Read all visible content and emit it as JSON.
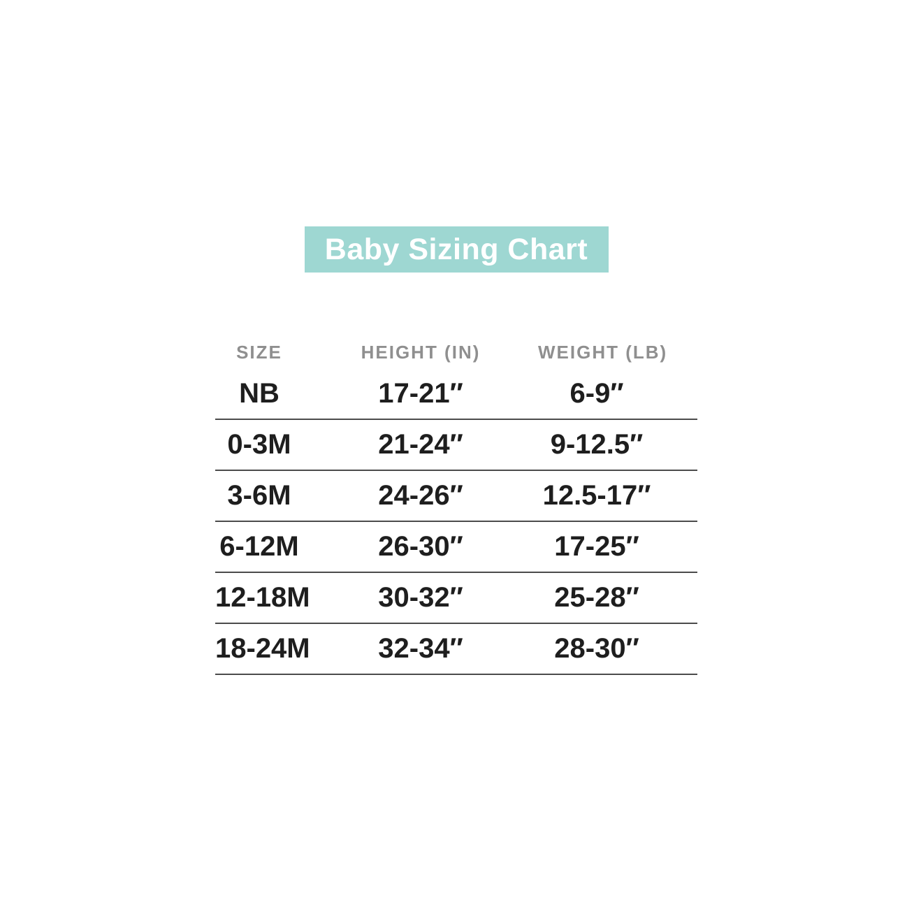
{
  "page": {
    "background_color": "#ffffff"
  },
  "title": {
    "text": "Baby Sizing Chart",
    "background_color": "#9ed7d2",
    "text_color": "#ffffff"
  },
  "chart_data": {
    "type": "table",
    "title": "Baby Sizing Chart",
    "columns": [
      "SIZE",
      "HEIGHT (IN)",
      "WEIGHT (LB)"
    ],
    "rows": [
      [
        "NB",
        "17-21″",
        "6-9″"
      ],
      [
        "0-3M",
        "21-24″",
        "9-12.5″"
      ],
      [
        "3-6M",
        "24-26″",
        "12.5-17″"
      ],
      [
        "6-12M",
        "26-30″",
        "17-25″"
      ],
      [
        "12-18M",
        "30-32″",
        "25-28″"
      ],
      [
        "18-24M",
        "32-34″",
        "28-30″"
      ]
    ],
    "layout": {
      "grid": "horizontal-dividers-only",
      "divider_color": "#4b4b4b",
      "header_text_color": "#8f8f8f",
      "body_text_color": "#1e1e1e",
      "column_alignment": "center"
    }
  }
}
